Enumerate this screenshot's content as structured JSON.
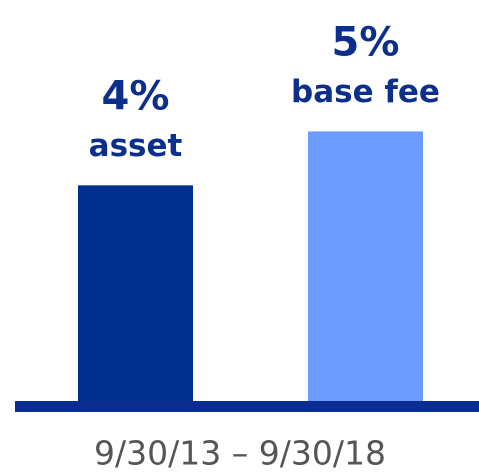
{
  "chart_data": {
    "type": "bar",
    "categories": [
      "asset",
      "base fee"
    ],
    "values": [
      4,
      5
    ],
    "value_labels": [
      "4%",
      "5%"
    ],
    "colors": [
      "#00308f",
      "#6b9bff"
    ],
    "xlabel": "9/30/13 – 9/30/18",
    "ylim": [
      0,
      7.4
    ]
  }
}
